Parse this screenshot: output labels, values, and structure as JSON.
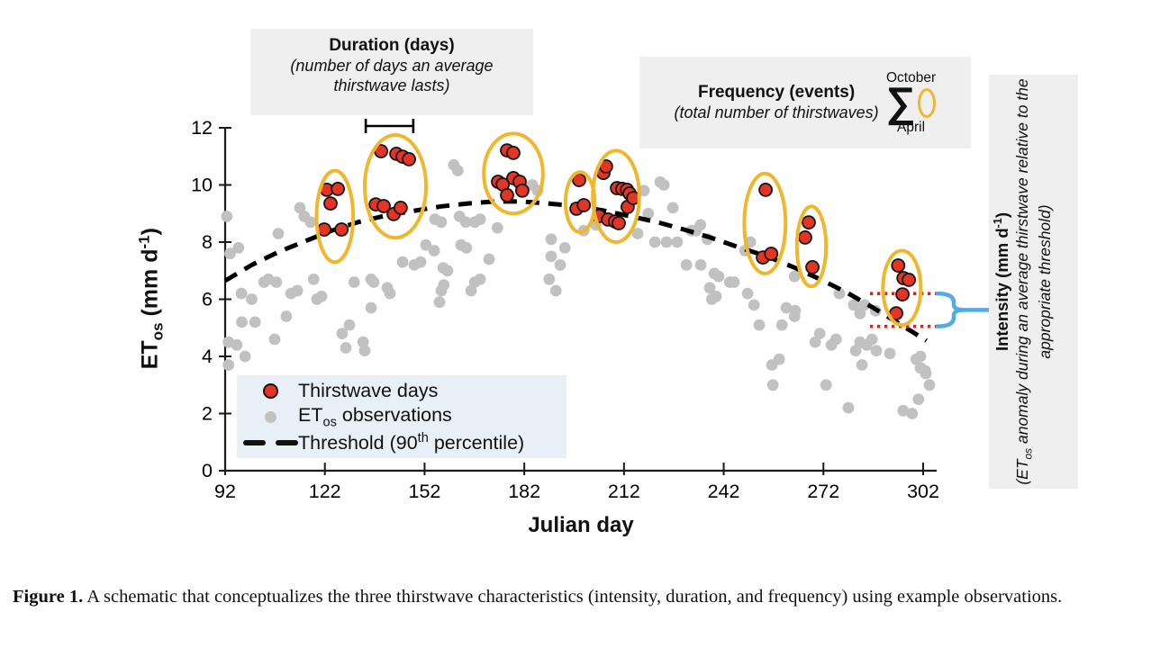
{
  "colors": {
    "thirstwave_red": "#e33425",
    "dot_stroke": "#141414",
    "observation_gray": "#c2c1c1",
    "event_ellipse_yellow": "#f0b62c",
    "intensity_blue": "#56aae2",
    "intensity_dotted_red": "#d42a1e",
    "legend_bg": "#e9eff7",
    "annotation_bg": "#efefef",
    "axis_black": "#1a1a1a"
  },
  "annotations": {
    "duration": {
      "title": "Duration (days)",
      "subtitle_line1": "(number of days an average",
      "subtitle_line2": "thirstwave lasts)"
    },
    "frequency": {
      "title": "Frequency (events)",
      "subtitle": "(total number of thirstwaves)",
      "sigma": "∑",
      "sum_upper": "October",
      "sum_lower": "April"
    },
    "intensity": {
      "title_pre": "Intensity (mm d",
      "title_sup": "-1",
      "title_post": ")",
      "subtitle_pre": "(ET",
      "subtitle_sub": "os",
      "subtitle_post": " anomaly during an average thirstwave relative to the appropriate threshold)"
    }
  },
  "legend": {
    "items": [
      {
        "type": "dot-red",
        "label": "Thirstwave days"
      },
      {
        "type": "dot-gray",
        "label_pre": "ET",
        "label_sub": "os",
        "label_post": " observations"
      },
      {
        "type": "dash",
        "label_pre": "Threshold (90",
        "label_sup": "th",
        "label_post": " percentile)"
      }
    ]
  },
  "axes": {
    "x": {
      "label": "Julian day"
    },
    "y": {
      "label_pre": "ET",
      "label_sub": "os",
      "label_mid": " (mm d",
      "label_sup": "-1",
      "label_post": ")"
    }
  },
  "figure": {
    "caption_label": "Figure 1.",
    "caption_text": "  A schematic that conceptualizes the three thirstwave characteristics (intensity, duration, and frequency) using example observations."
  },
  "chart_data": {
    "type": "scatter",
    "xlabel": "Julian day",
    "ylabel": "ETos (mm d-1)",
    "xlim": [
      92,
      306
    ],
    "ylim": [
      0,
      12
    ],
    "x_ticks": [
      92,
      122,
      152,
      182,
      212,
      242,
      272,
      302
    ],
    "y_ticks": [
      0,
      2,
      4,
      6,
      8,
      10,
      12
    ],
    "grid": false,
    "legend_position": "lower-left",
    "series": [
      {
        "name": "ETos observations",
        "color": "#c2c1c1",
        "points": [
          [
            92.5,
            8.9
          ],
          [
            93,
            4.5
          ],
          [
            93,
            3.7
          ],
          [
            93.5,
            7.6
          ],
          [
            95.5,
            4.4
          ],
          [
            96,
            7.8
          ],
          [
            96.9,
            6.2
          ],
          [
            97,
            5.2
          ],
          [
            98,
            4.0
          ],
          [
            100,
            6.0
          ],
          [
            101,
            5.2
          ],
          [
            103.7,
            6.6
          ],
          [
            105,
            6.7
          ],
          [
            106.9,
            4.6
          ],
          [
            107.4,
            6.6
          ],
          [
            108,
            8.3
          ],
          [
            110.4,
            5.4
          ],
          [
            111.8,
            6.2
          ],
          [
            113.7,
            6.3
          ],
          [
            114.5,
            9.2
          ],
          [
            115.8,
            8.9
          ],
          [
            117.7,
            8.7
          ],
          [
            118.6,
            6.7
          ],
          [
            119.6,
            6.0
          ],
          [
            121,
            6.1
          ],
          [
            127.2,
            4.8
          ],
          [
            128.3,
            4.3
          ],
          [
            129.4,
            5.1
          ],
          [
            130.8,
            6.6
          ],
          [
            133.5,
            4.5
          ],
          [
            134,
            4.2
          ],
          [
            135.9,
            6.7
          ],
          [
            135.9,
            5.7
          ],
          [
            136.7,
            6.6
          ],
          [
            140.8,
            6.4
          ],
          [
            141.6,
            6.2
          ],
          [
            145.4,
            7.3
          ],
          [
            148.9,
            7.2
          ],
          [
            150.8,
            7.3
          ],
          [
            152.4,
            7.9
          ],
          [
            154.9,
            7.7
          ],
          [
            155.1,
            8.8
          ],
          [
            156.5,
            5.9
          ],
          [
            157,
            8.7
          ],
          [
            157,
            6.3
          ],
          [
            157.6,
            7.1
          ],
          [
            157.8,
            6.5
          ],
          [
            158.9,
            7.0
          ],
          [
            160.8,
            10.7
          ],
          [
            162,
            10.5
          ],
          [
            162.5,
            8.9
          ],
          [
            163,
            7.9
          ],
          [
            164.4,
            8.7
          ],
          [
            164.6,
            7.8
          ],
          [
            166,
            6.3
          ],
          [
            167.1,
            8.7
          ],
          [
            167.1,
            6.6
          ],
          [
            168.7,
            8.8
          ],
          [
            168.7,
            6.7
          ],
          [
            171.4,
            7.4
          ],
          [
            173.9,
            8.5
          ],
          [
            184.4,
            10.0
          ],
          [
            186,
            9.8
          ],
          [
            189.5,
            6.7
          ],
          [
            190.1,
            8.1
          ],
          [
            190.1,
            7.5
          ],
          [
            191.5,
            6.3
          ],
          [
            192.8,
            7.2
          ],
          [
            194.2,
            7.8
          ],
          [
            199.9,
            8.4
          ],
          [
            203.5,
            8.6
          ],
          [
            216.1,
            8.3
          ],
          [
            218,
            9.8
          ],
          [
            219.3,
            9.0
          ],
          [
            221.3,
            8.0
          ],
          [
            222.9,
            10.1
          ],
          [
            224,
            10.0
          ],
          [
            224.8,
            8.0
          ],
          [
            226.7,
            9.2
          ],
          [
            228,
            8.0
          ],
          [
            230.8,
            7.2
          ],
          [
            232.3,
            8.4
          ],
          [
            233.7,
            8.4
          ],
          [
            235,
            8.6
          ],
          [
            235.1,
            7.2
          ],
          [
            237.1,
            8.1
          ],
          [
            237.8,
            6.4
          ],
          [
            238.4,
            6.0
          ],
          [
            239.2,
            6.9
          ],
          [
            239.7,
            6.1
          ],
          [
            240.5,
            6.8
          ],
          [
            243.8,
            6.6
          ],
          [
            245.1,
            6.6
          ],
          [
            248.4,
            7.7
          ],
          [
            249.2,
            6.2
          ],
          [
            250,
            8.0
          ],
          [
            251.1,
            5.8
          ],
          [
            252.7,
            5.1
          ],
          [
            256.5,
            3.7
          ],
          [
            256.8,
            3.0
          ],
          [
            258.7,
            3.9
          ],
          [
            259.5,
            5.1
          ],
          [
            260.8,
            5.7
          ],
          [
            263.3,
            6.8
          ],
          [
            263.3,
            5.4
          ],
          [
            263.5,
            5.6
          ],
          [
            269.5,
            4.5
          ],
          [
            270.9,
            4.8
          ],
          [
            272.8,
            3.0
          ],
          [
            274.4,
            4.4
          ],
          [
            275.8,
            4.6
          ],
          [
            276.8,
            6.2
          ],
          [
            279.5,
            2.2
          ],
          [
            281.1,
            5.8
          ],
          [
            281.7,
            4.2
          ],
          [
            283,
            5.5
          ],
          [
            283,
            4.5
          ],
          [
            283.6,
            3.7
          ],
          [
            284.4,
            5.8
          ],
          [
            285,
            4.4
          ],
          [
            286.6,
            4.6
          ],
          [
            287.7,
            5.6
          ],
          [
            287.9,
            4.2
          ],
          [
            292,
            4.1
          ],
          [
            296,
            2.1
          ],
          [
            298.7,
            2.0
          ],
          [
            299.9,
            3.9
          ],
          [
            300.6,
            2.5
          ],
          [
            301.2,
            4.0
          ],
          [
            301.2,
            3.6
          ],
          [
            302.6,
            3.5
          ],
          [
            302.8,
            3.4
          ],
          [
            303.9,
            3.0
          ]
        ]
      },
      {
        "name": "Thirstwave days",
        "color": "#e33425",
        "points": [
          [
            121.8,
            8.44
          ],
          [
            122.6,
            9.83
          ],
          [
            123.7,
            9.35
          ],
          [
            125.9,
            9.86
          ],
          [
            127,
            8.44
          ],
          [
            137.3,
            9.32
          ],
          [
            138.9,
            11.18
          ],
          [
            139.7,
            9.26
          ],
          [
            142.7,
            8.98
          ],
          [
            143.5,
            11.09
          ],
          [
            144.8,
            9.2
          ],
          [
            145.4,
            10.99
          ],
          [
            147.3,
            10.9
          ],
          [
            174.1,
            10.11
          ],
          [
            175.5,
            10.02
          ],
          [
            176.8,
            11.21
          ],
          [
            176.8,
            9.64
          ],
          [
            178.7,
            11.12
          ],
          [
            178.7,
            10.24
          ],
          [
            180.6,
            10.11
          ],
          [
            181.4,
            9.8
          ],
          [
            197.7,
            9.17
          ],
          [
            198.5,
            10.17
          ],
          [
            199.9,
            9.29
          ],
          [
            204.5,
            8.91
          ],
          [
            205.8,
            10.42
          ],
          [
            206.6,
            10.65
          ],
          [
            207.2,
            8.79
          ],
          [
            209.3,
            8.72
          ],
          [
            209.9,
            9.89
          ],
          [
            210.4,
            8.66
          ],
          [
            211.5,
            9.86
          ],
          [
            212.9,
            9.83
          ],
          [
            213.1,
            9.23
          ],
          [
            213.7,
            9.7
          ],
          [
            214.8,
            9.54
          ],
          [
            253.8,
            7.46
          ],
          [
            254.6,
            9.83
          ],
          [
            256.3,
            7.59
          ],
          [
            266.5,
            8.16
          ],
          [
            267.6,
            8.69
          ],
          [
            268.7,
            7.12
          ],
          [
            293.9,
            5.51
          ],
          [
            294.5,
            7.18
          ],
          [
            295.8,
            6.17
          ],
          [
            296.1,
            6.74
          ],
          [
            297.7,
            6.68
          ]
        ]
      }
    ],
    "threshold": {
      "name": "Threshold (90th percentile)",
      "style": "dashed",
      "color": "#000000",
      "points": [
        [
          92,
          6.65
        ],
        [
          100,
          7.2
        ],
        [
          108,
          7.65
        ],
        [
          116,
          8.03
        ],
        [
          124,
          8.4
        ],
        [
          132,
          8.7
        ],
        [
          140,
          8.92
        ],
        [
          149,
          9.1
        ],
        [
          157,
          9.25
        ],
        [
          165,
          9.35
        ],
        [
          173,
          9.42
        ],
        [
          181,
          9.42
        ],
        [
          189,
          9.35
        ],
        [
          198,
          9.26
        ],
        [
          206,
          9.1
        ],
        [
          214,
          8.9
        ],
        [
          222,
          8.7
        ],
        [
          230,
          8.44
        ],
        [
          238,
          8.16
        ],
        [
          246,
          7.84
        ],
        [
          255,
          7.5
        ],
        [
          263,
          7.12
        ],
        [
          271,
          6.7
        ],
        [
          279,
          6.24
        ],
        [
          287,
          5.7
        ],
        [
          295,
          5.13
        ],
        [
          303,
          4.55
        ]
      ]
    },
    "event_ellipses": [
      {
        "day": 125.0,
        "value": 8.9,
        "day_radius": 5.5,
        "value_radius": 1.6
      },
      {
        "day": 143.2,
        "value": 9.95,
        "day_radius": 9.2,
        "value_radius": 1.8
      },
      {
        "day": 178.7,
        "value": 10.4,
        "day_radius": 8.9,
        "value_radius": 1.4
      },
      {
        "day": 198.8,
        "value": 9.4,
        "day_radius": 4.4,
        "value_radius": 1.05
      },
      {
        "day": 209.6,
        "value": 9.6,
        "day_radius": 7.0,
        "value_radius": 1.6
      },
      {
        "day": 254.4,
        "value": 8.65,
        "day_radius": 6.2,
        "value_radius": 1.75
      },
      {
        "day": 268.4,
        "value": 7.85,
        "day_radius": 4.4,
        "value_radius": 1.4
      },
      {
        "day": 295.6,
        "value": 6.4,
        "day_radius": 5.7,
        "value_radius": 1.3
      }
    ],
    "duration_bracket": {
      "day_start": 134.3,
      "day_end": 148.6
    },
    "intensity_marker": {
      "day_start": 286,
      "day_end": 306,
      "upper_value": 6.2,
      "lower_value": 5.05
    }
  }
}
